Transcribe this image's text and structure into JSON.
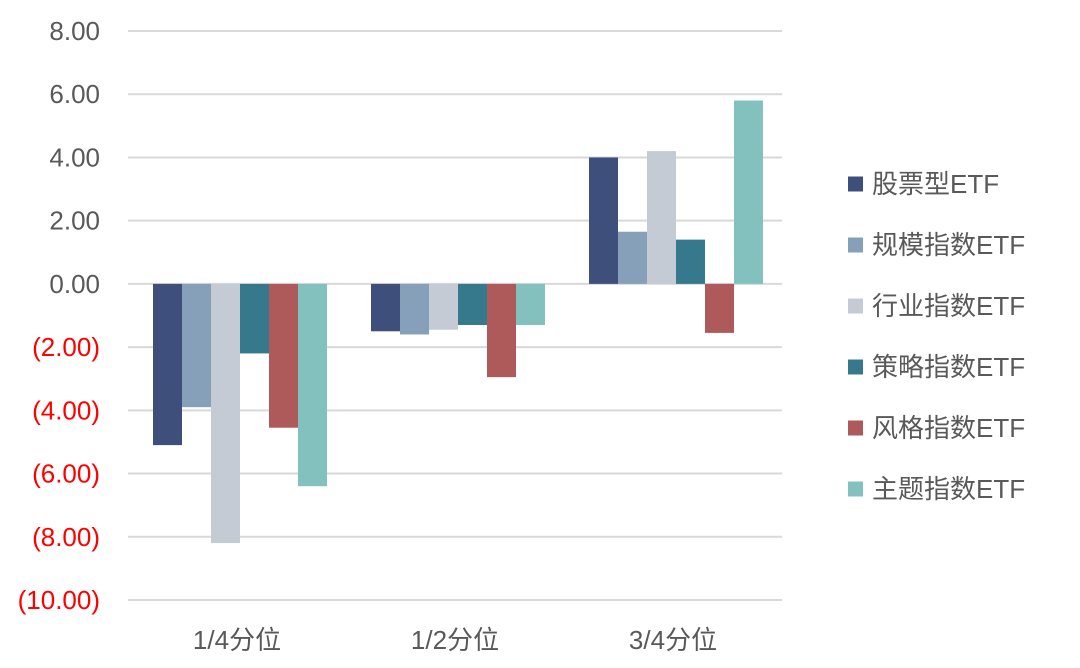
{
  "chart_data": {
    "type": "bar",
    "title": "",
    "xlabel": "",
    "ylabel": "",
    "categories": [
      "1/4分位",
      "1/2分位",
      "3/4分位"
    ],
    "series": [
      {
        "name": "股票型ETF",
        "color": "#3e4f7c",
        "values": [
          -5.1,
          -1.5,
          4.0
        ]
      },
      {
        "name": "规模指数ETF",
        "color": "#86a0ba",
        "values": [
          -3.9,
          -1.6,
          1.65
        ]
      },
      {
        "name": "行业指数ETF",
        "color": "#c4cbd4",
        "values": [
          -8.2,
          -1.45,
          4.2
        ]
      },
      {
        "name": "策略指数ETF",
        "color": "#36788c",
        "values": [
          -2.2,
          -1.3,
          1.4
        ]
      },
      {
        "name": "风格指数ETF",
        "color": "#ae5a5a",
        "values": [
          -4.55,
          -2.95,
          -1.55
        ]
      },
      {
        "name": "主题指数ETF",
        "color": "#82c1bd",
        "values": [
          -6.4,
          -1.3,
          5.8
        ]
      }
    ],
    "ylim": [
      -10,
      8
    ],
    "yticks": [
      8,
      6,
      4,
      2,
      0,
      -2,
      -4,
      -6,
      -8,
      -10
    ],
    "ytick_labels": [
      "8.00",
      "6.00",
      "4.00",
      "2.00",
      "0.00",
      "(2.00)",
      "(4.00)",
      "(6.00)",
      "(8.00)",
      "(10.00)"
    ],
    "ytick_positive_color": "#595959",
    "ytick_negative_color": "#ff0000",
    "gridlines": true,
    "legend_position": "right"
  }
}
